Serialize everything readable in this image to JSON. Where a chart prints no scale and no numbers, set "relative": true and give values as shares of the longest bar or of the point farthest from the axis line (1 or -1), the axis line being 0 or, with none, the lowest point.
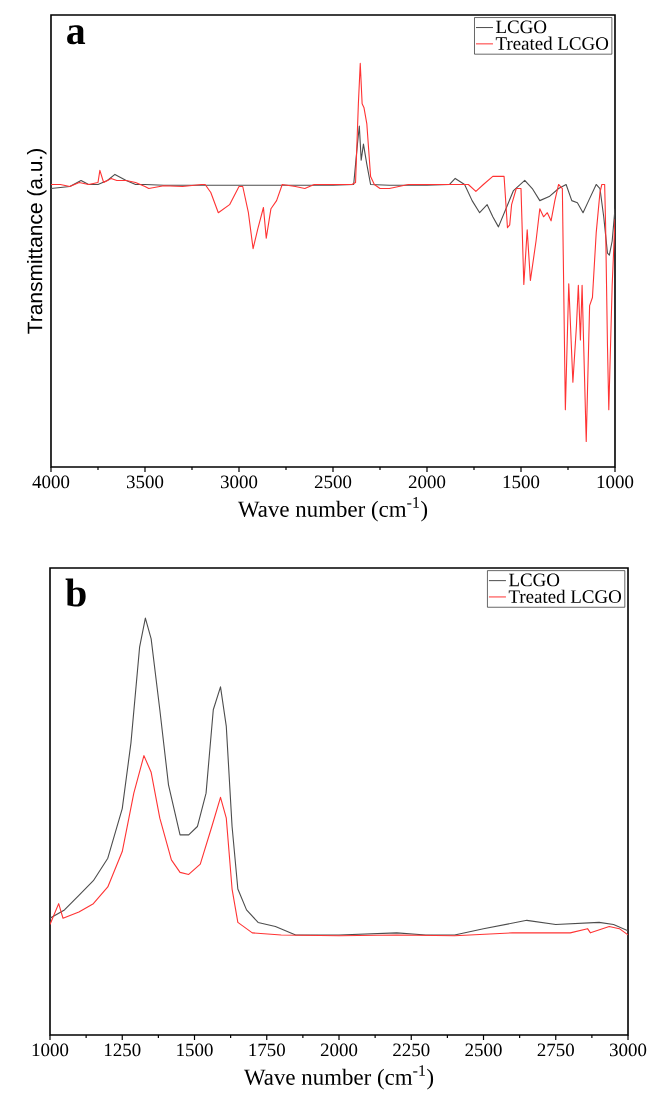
{
  "chart_data": [
    {
      "type": "line",
      "relative": true,
      "xlabel": "Wave number (cm$^{-1}$)",
      "ylabel": "Transmittance (a.u.)",
      "annotations": [
        "a"
      ],
      "xlim": [
        4000,
        1000
      ],
      "xticks": [
        4000,
        3500,
        3000,
        2500,
        2000,
        1500,
        1000
      ],
      "legend": "top right",
      "grid": false,
      "marker": "none",
      "line_style": "solid",
      "series": [
        {
          "name": "LCGO",
          "color": "#4d4d4d",
          "x": [
            4000,
            3900,
            3840,
            3800,
            3750,
            3700,
            3660,
            3600,
            3550,
            3500,
            3400,
            3000,
            2500,
            2390,
            2370,
            2360,
            2350,
            2338,
            2320,
            2300,
            2200,
            2000,
            1880,
            1850,
            1800,
            1760,
            1720,
            1680,
            1650,
            1620,
            1580,
            1540,
            1480,
            1440,
            1400,
            1350,
            1300,
            1260,
            1230,
            1200,
            1170,
            1140,
            1100,
            1080,
            1060,
            1040,
            1030,
            1015,
            1000
          ],
          "values": [
            0.69,
            0.695,
            0.71,
            0.7,
            0.7,
            0.71,
            0.725,
            0.71,
            0.7,
            0.7,
            0.698,
            0.698,
            0.698,
            0.7,
            0.8,
            0.845,
            0.76,
            0.8,
            0.75,
            0.7,
            0.698,
            0.698,
            0.7,
            0.715,
            0.7,
            0.66,
            0.63,
            0.65,
            0.62,
            0.595,
            0.64,
            0.685,
            0.71,
            0.69,
            0.66,
            0.67,
            0.69,
            0.7,
            0.66,
            0.655,
            0.63,
            0.66,
            0.7,
            0.69,
            0.62,
            0.53,
            0.525,
            0.56,
            0.64
          ]
        },
        {
          "name": "Treated LCGO",
          "color": "#ff3333",
          "x": [
            4000,
            3950,
            3900,
            3850,
            3800,
            3750,
            3740,
            3720,
            3680,
            3650,
            3600,
            3550,
            3500,
            3480,
            3400,
            3300,
            3200,
            3180,
            3150,
            3110,
            3050,
            3000,
            2980,
            2950,
            2925,
            2900,
            2870,
            2855,
            2830,
            2800,
            2770,
            2700,
            2650,
            2600,
            2500,
            2400,
            2380,
            2365,
            2355,
            2345,
            2335,
            2320,
            2300,
            2280,
            2250,
            2200,
            2100,
            2000,
            1900,
            1800,
            1780,
            1740,
            1700,
            1650,
            1590,
            1572,
            1560,
            1550,
            1525,
            1500,
            1485,
            1467,
            1450,
            1420,
            1400,
            1380,
            1360,
            1340,
            1320,
            1300,
            1280,
            1264,
            1246,
            1224,
            1205,
            1195,
            1184,
            1175,
            1153,
            1135,
            1120,
            1100,
            1080,
            1070,
            1055,
            1050,
            1040,
            1033,
            1015,
            1000
          ],
          "values": [
            0.7,
            0.7,
            0.695,
            0.705,
            0.7,
            0.705,
            0.735,
            0.705,
            0.715,
            0.71,
            0.71,
            0.705,
            0.695,
            0.69,
            0.697,
            0.695,
            0.7,
            0.7,
            0.68,
            0.63,
            0.65,
            0.695,
            0.695,
            0.63,
            0.541,
            0.59,
            0.643,
            0.567,
            0.64,
            0.66,
            0.7,
            0.695,
            0.69,
            0.7,
            0.7,
            0.7,
            0.705,
            0.9,
            1.0,
            0.9,
            0.89,
            0.85,
            0.72,
            0.7,
            0.69,
            0.69,
            0.7,
            0.7,
            0.7,
            0.7,
            0.7,
            0.683,
            0.7,
            0.72,
            0.72,
            0.593,
            0.6,
            0.65,
            0.69,
            0.69,
            0.452,
            0.588,
            0.462,
            0.56,
            0.64,
            0.62,
            0.63,
            0.61,
            0.66,
            0.7,
            0.69,
            0.142,
            0.454,
            0.21,
            0.35,
            0.45,
            0.315,
            0.45,
            0.063,
            0.4,
            0.42,
            0.58,
            0.68,
            0.7,
            0.7,
            0.6,
            0.3,
            0.142,
            0.45,
            0.614
          ]
        }
      ]
    },
    {
      "type": "line",
      "relative": true,
      "xlabel": "Wave number (cm$^{-1}$)",
      "annotations": [
        "b"
      ],
      "xlim": [
        1000,
        3000
      ],
      "xticks": [
        1000,
        1250,
        1500,
        1750,
        2000,
        2250,
        2500,
        2750,
        3000
      ],
      "legend": "top right",
      "grid": false,
      "marker": "none",
      "line_style": "solid",
      "series": [
        {
          "name": "LCGO",
          "color": "#4d4d4d",
          "x": [
            1000,
            1050,
            1100,
            1150,
            1200,
            1250,
            1280,
            1310,
            1330,
            1350,
            1380,
            1410,
            1450,
            1480,
            1510,
            1540,
            1565,
            1590,
            1610,
            1630,
            1650,
            1680,
            1720,
            1780,
            1850,
            2000,
            2200,
            2300,
            2400,
            2500,
            2650,
            2750,
            2900,
            2950,
            3000
          ],
          "values": [
            0.28,
            0.3,
            0.335,
            0.37,
            0.424,
            0.543,
            0.7,
            0.93,
            1.0,
            0.95,
            0.78,
            0.6,
            0.48,
            0.48,
            0.5,
            0.58,
            0.78,
            0.835,
            0.74,
            0.5,
            0.35,
            0.3,
            0.27,
            0.26,
            0.24,
            0.24,
            0.245,
            0.24,
            0.24,
            0.255,
            0.275,
            0.265,
            0.27,
            0.265,
            0.25
          ]
        },
        {
          "name": "Treated LCGO",
          "color": "#ff3333",
          "x": [
            1000,
            1030,
            1045,
            1100,
            1150,
            1200,
            1250,
            1290,
            1325,
            1350,
            1380,
            1420,
            1450,
            1480,
            1520,
            1560,
            1590,
            1610,
            1630,
            1650,
            1700,
            1800,
            2000,
            2200,
            2400,
            2600,
            2800,
            2860,
            2870,
            2935,
            2970,
            3000
          ],
          "values": [
            0.265,
            0.315,
            0.28,
            0.295,
            0.315,
            0.355,
            0.44,
            0.58,
            0.67,
            0.63,
            0.52,
            0.42,
            0.39,
            0.385,
            0.41,
            0.5,
            0.57,
            0.52,
            0.35,
            0.27,
            0.245,
            0.24,
            0.238,
            0.24,
            0.238,
            0.245,
            0.245,
            0.255,
            0.245,
            0.26,
            0.255,
            0.24
          ]
        }
      ]
    }
  ]
}
